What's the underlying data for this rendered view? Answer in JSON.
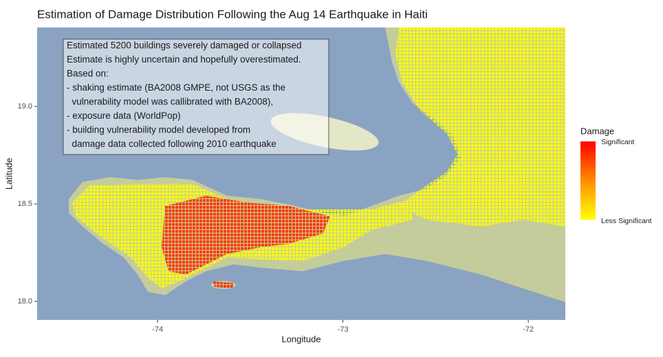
{
  "chart_data": {
    "type": "map",
    "title": "Estimation of Damage Distribution Following the Aug 14 Earthquake in Haiti",
    "xlabel": "Longitude",
    "ylabel": "Latitude",
    "xlim": [
      -74.65,
      -71.8
    ],
    "ylim": [
      17.905,
      19.405
    ],
    "xticks": [
      -74,
      -73,
      -72
    ],
    "yticks": [
      {
        "value": 18,
        "label": "18.0"
      },
      18.5,
      {
        "value": 19,
        "label": "19.0"
      }
    ],
    "annotation": [
      "Estimated 5200 buildings severely damaged or collapsed",
      "Estimate is highly uncertain and hopefully overestimated.",
      "Based on:",
      "- shaking estimate (BA2008 GMPE, not USGS as the",
      "  vulnerability model was callibrated with BA2008),",
      "- exposure data (WorldPop)",
      "- building vulnerability model developed from",
      "  damage data collected following 2010 earthquake"
    ],
    "legend": {
      "title": "Damage",
      "labels": [
        "Significant",
        "Less Significant"
      ],
      "colors": [
        "#ff0000",
        "#ffff00"
      ]
    }
  }
}
